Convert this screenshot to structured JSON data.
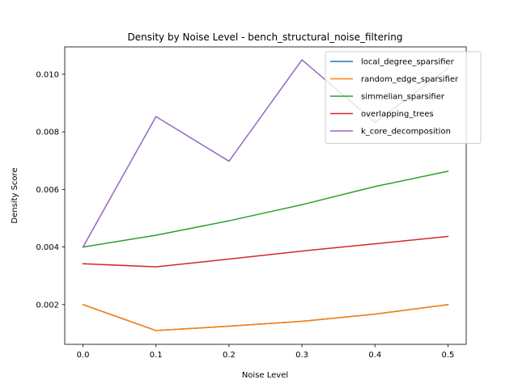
{
  "chart_data": {
    "type": "line",
    "title": "Density by Noise Level - bench_structural_noise_filtering",
    "xlabel": "Noise Level",
    "ylabel": "Density Score",
    "x": [
      0.0,
      0.1,
      0.2,
      0.3,
      0.4,
      0.5
    ],
    "xlim": [
      -0.025,
      0.525
    ],
    "ylim": [
      0.00062,
      0.01095
    ],
    "xticks": [
      0.0,
      0.1,
      0.2,
      0.3,
      0.4,
      0.5
    ],
    "xtick_labels": [
      "0.0",
      "0.1",
      "0.2",
      "0.3",
      "0.4",
      "0.5"
    ],
    "yticks": [
      0.002,
      0.004,
      0.006,
      0.008,
      0.01
    ],
    "ytick_labels": [
      "0.002",
      "0.004",
      "0.006",
      "0.008",
      "0.010"
    ],
    "grid": false,
    "legend_position": "top-right",
    "series": [
      {
        "name": "local_degree_sparsifier",
        "color": "#1f77b4",
        "values": [
          0.002,
          0.0011,
          0.00125,
          0.00142,
          0.00167,
          0.002
        ]
      },
      {
        "name": "random_edge_sparsifier",
        "color": "#ff7f0e",
        "values": [
          0.002,
          0.0011,
          0.00125,
          0.00142,
          0.00167,
          0.002
        ]
      },
      {
        "name": "simmelian_sparsifier",
        "color": "#2ca02c",
        "values": [
          0.004,
          0.00441,
          0.00491,
          0.00547,
          0.0061,
          0.00663
        ]
      },
      {
        "name": "overlapping_trees",
        "color": "#d62728",
        "values": [
          0.00342,
          0.00331,
          0.00358,
          0.00386,
          0.00411,
          0.00437
        ]
      },
      {
        "name": "k_core_decomposition",
        "color": "#9467bd",
        "values": [
          0.004,
          0.00853,
          0.00698,
          0.0105,
          0.00833,
          0.0102
        ]
      }
    ]
  }
}
